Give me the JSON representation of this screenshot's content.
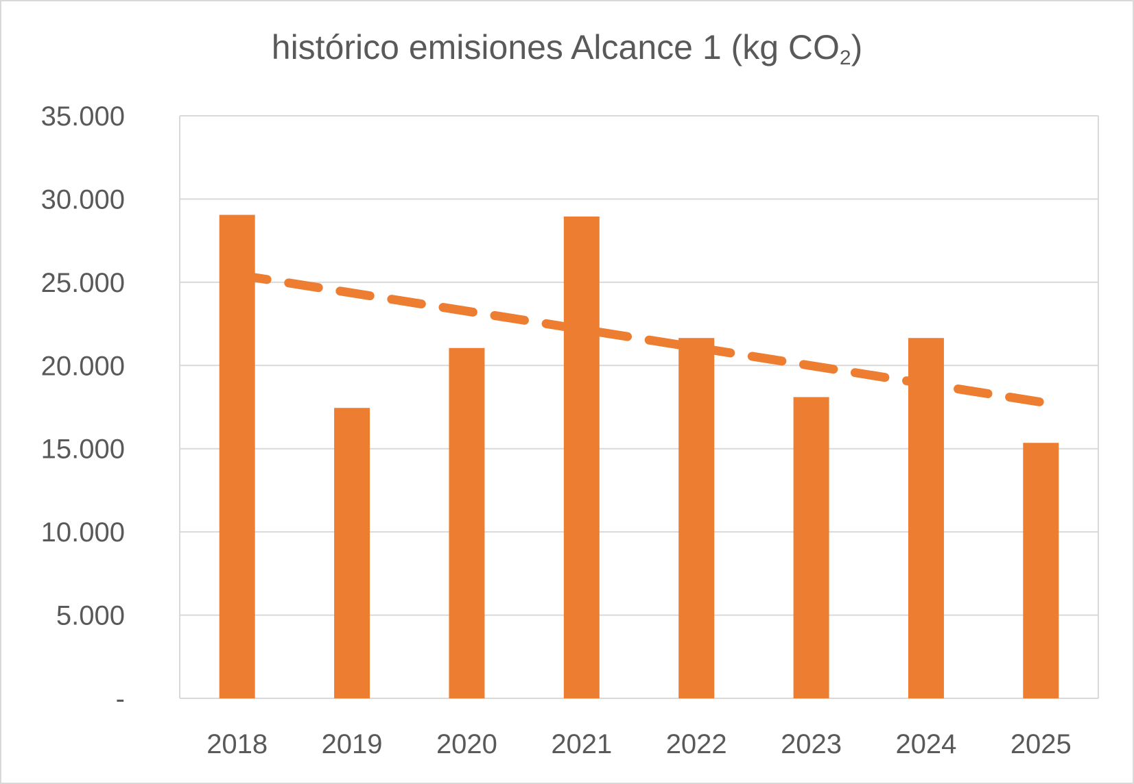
{
  "chart_data": {
    "type": "bar",
    "title": "histórico emisiones Alcance 1 (kg CO",
    "title_subscript": "2",
    "title_suffix": ")",
    "categories": [
      "2018",
      "2019",
      "2020",
      "2021",
      "2022",
      "2023",
      "2024",
      "2025"
    ],
    "values": [
      29050,
      17450,
      21050,
      28950,
      21650,
      18100,
      21650,
      15350
    ],
    "ylim": [
      0,
      35000
    ],
    "yticks": [
      0,
      5000,
      10000,
      15000,
      20000,
      25000,
      30000,
      35000
    ],
    "ytick_labels": [
      "-",
      "5.000",
      "10.000",
      "15.000",
      "20.000",
      "25.000",
      "30.000",
      "35.000"
    ],
    "trendline": {
      "type": "linear",
      "style": "dashed",
      "start": 25450,
      "end": 17800
    },
    "grid": true,
    "legend": "none",
    "colors": {
      "bar": "#ED7D31",
      "grid": "#d9d9d9",
      "text": "#595959"
    }
  }
}
